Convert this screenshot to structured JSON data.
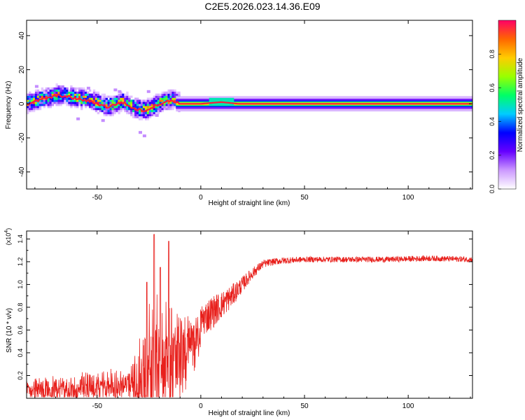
{
  "figure": {
    "title": "C2E5.2026.023.14.36.E09"
  },
  "chart_data": [
    {
      "type": "heatmap",
      "title": "C2E5.2026.023.14.36.E09",
      "xlabel": "Height of straight line (km)",
      "ylabel": "Frequency (Hz)",
      "xlim": [
        -84,
        131
      ],
      "ylim": [
        -50,
        49
      ],
      "xticks": [
        -50,
        0,
        50,
        100
      ],
      "yticks": [
        -40,
        -20,
        0,
        20,
        40
      ],
      "xtick_labels": [
        "-50",
        "0",
        "50",
        "100"
      ],
      "ytick_labels": [
        "-40",
        "-20",
        "0",
        "20",
        "40"
      ],
      "colorbar": {
        "label": "Normalized spectral amplitude",
        "range": [
          0,
          1
        ],
        "ticks": [
          0.0,
          0.2,
          0.4,
          0.6,
          0.8
        ],
        "tick_labels": [
          "0.0",
          "0.2",
          "0.4",
          "0.6",
          "0.8"
        ],
        "colormap": [
          "#ffffff",
          "#cc99ff",
          "#6600ff",
          "#0000ff",
          "#00ccff",
          "#00ff66",
          "#99ff00",
          "#ffcc00",
          "#ff6600",
          "#ff0066"
        ]
      },
      "ridge": {
        "x": [
          -84,
          -75,
          -68,
          -60,
          -52,
          -45,
          -38,
          -32,
          -27,
          -20,
          -14,
          -10,
          0,
          10,
          18,
          30,
          60,
          100,
          131
        ],
        "y": [
          0,
          3,
          5,
          3,
          1,
          -2,
          1,
          -3,
          -4,
          0,
          2,
          0,
          0,
          1,
          0,
          0,
          0,
          0,
          0
        ]
      }
    },
    {
      "type": "line",
      "xlabel": "Height of straight line (km)",
      "ylabel": "SNR (10 * v/v)",
      "y_multiplier_label": "(x10",
      "y_multiplier_exp": "4",
      "y_multiplier_close": ")",
      "xlim": [
        -84,
        131
      ],
      "ylim": [
        0.0,
        1.47
      ],
      "xticks": [
        -50,
        0,
        50,
        100
      ],
      "yticks": [
        0.2,
        0.4,
        0.6,
        0.8,
        1.0,
        1.2,
        1.4
      ],
      "xtick_labels": [
        "-50",
        "0",
        "50",
        "100"
      ],
      "ytick_labels": [
        "0.2",
        "0.4",
        "0.6",
        "0.8",
        "1.0",
        "1.2",
        "1.4"
      ],
      "series": [
        {
          "name": "SNR",
          "color": "#e8201c",
          "envelope_x": [
            -84,
            -70,
            -60,
            -50,
            -40,
            -33,
            -28,
            -24,
            -20,
            -16,
            -12,
            -8,
            -4,
            0,
            5,
            10,
            15,
            20,
            25,
            30,
            35,
            40,
            50,
            70,
            90,
            110,
            131
          ],
          "envelope_y": [
            0.12,
            0.13,
            0.14,
            0.16,
            0.18,
            0.2,
            0.35,
            0.55,
            0.7,
            0.62,
            0.55,
            0.58,
            0.62,
            0.68,
            0.75,
            0.82,
            0.9,
            1.0,
            1.1,
            1.18,
            1.2,
            1.21,
            1.22,
            1.22,
            1.22,
            1.23,
            1.22
          ],
          "noise_y": [
            0.08,
            0.08,
            0.09,
            0.1,
            0.1,
            0.12,
            0.3,
            0.45,
            0.5,
            0.45,
            0.35,
            0.25,
            0.18,
            0.15,
            0.15,
            0.12,
            0.1,
            0.07,
            0.05,
            0.035,
            0.03,
            0.03,
            0.025,
            0.025,
            0.025,
            0.025,
            0.025
          ],
          "peaks": [
            {
              "x": -22.5,
              "y": 1.44
            },
            {
              "x": -15.5,
              "y": 1.38
            },
            {
              "x": -19.5,
              "y": 1.15
            },
            {
              "x": -26.0,
              "y": 1.02
            }
          ]
        }
      ]
    }
  ]
}
